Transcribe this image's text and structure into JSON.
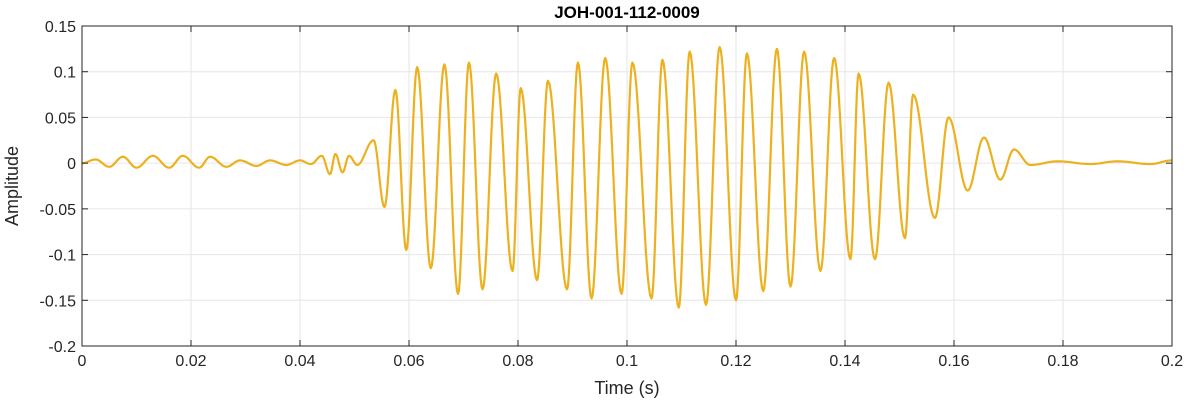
{
  "chart_data": {
    "type": "line",
    "title": "JOH-001-112-0009",
    "xlabel": "Time (s)",
    "ylabel": "Amplitude",
    "xlim": [
      0,
      0.2
    ],
    "ylim": [
      -0.2,
      0.15
    ],
    "x_ticks": [
      0,
      0.02,
      0.04,
      0.06,
      0.08,
      0.1,
      0.12,
      0.14,
      0.16,
      0.18,
      0.2
    ],
    "x_tick_labels": [
      "0",
      "0.02",
      "0.04",
      "0.06",
      "0.08",
      "0.1",
      "0.12",
      "0.14",
      "0.16",
      "0.18",
      "0.2"
    ],
    "y_ticks": [
      0.15,
      0.1,
      0.05,
      0,
      -0.05,
      -0.1,
      -0.15,
      -0.2
    ],
    "y_tick_labels": [
      "0.15",
      "0.1",
      "0.05",
      "0",
      "-0.05",
      "-0.1",
      "-0.15",
      "-0.2"
    ],
    "grid": true,
    "color": "#EDB120",
    "series": [
      {
        "name": "",
        "peaks": [
          {
            "t": 0.0025,
            "a": 0.004
          },
          {
            "t": 0.005,
            "a": -0.004
          },
          {
            "t": 0.0075,
            "a": 0.007
          },
          {
            "t": 0.01,
            "a": -0.005
          },
          {
            "t": 0.013,
            "a": 0.008
          },
          {
            "t": 0.016,
            "a": -0.005
          },
          {
            "t": 0.0185,
            "a": 0.008
          },
          {
            "t": 0.0215,
            "a": -0.005
          },
          {
            "t": 0.0235,
            "a": 0.007
          },
          {
            "t": 0.0265,
            "a": -0.004
          },
          {
            "t": 0.029,
            "a": 0.003
          },
          {
            "t": 0.032,
            "a": -0.003
          },
          {
            "t": 0.0345,
            "a": 0.003
          },
          {
            "t": 0.0375,
            "a": -0.002
          },
          {
            "t": 0.04,
            "a": 0.003
          },
          {
            "t": 0.042,
            "a": -0.001
          },
          {
            "t": 0.044,
            "a": 0.008
          },
          {
            "t": 0.0455,
            "a": -0.012
          },
          {
            "t": 0.0465,
            "a": 0.01
          },
          {
            "t": 0.0478,
            "a": -0.01
          },
          {
            "t": 0.049,
            "a": 0.008
          },
          {
            "t": 0.0505,
            "a": -0.002
          },
          {
            "t": 0.0535,
            "a": 0.025
          },
          {
            "t": 0.0555,
            "a": -0.048
          },
          {
            "t": 0.0575,
            "a": 0.08
          },
          {
            "t": 0.0595,
            "a": -0.095
          },
          {
            "t": 0.0615,
            "a": 0.105
          },
          {
            "t": 0.064,
            "a": -0.115
          },
          {
            "t": 0.0665,
            "a": 0.108
          },
          {
            "t": 0.069,
            "a": -0.143
          },
          {
            "t": 0.071,
            "a": 0.11
          },
          {
            "t": 0.0735,
            "a": -0.138
          },
          {
            "t": 0.076,
            "a": 0.098
          },
          {
            "t": 0.079,
            "a": -0.118
          },
          {
            "t": 0.0805,
            "a": 0.082
          },
          {
            "t": 0.0835,
            "a": -0.128
          },
          {
            "t": 0.0855,
            "a": 0.09
          },
          {
            "t": 0.089,
            "a": -0.138
          },
          {
            "t": 0.091,
            "a": 0.11
          },
          {
            "t": 0.0935,
            "a": -0.148
          },
          {
            "t": 0.096,
            "a": 0.115
          },
          {
            "t": 0.099,
            "a": -0.143
          },
          {
            "t": 0.101,
            "a": 0.11
          },
          {
            "t": 0.1045,
            "a": -0.148
          },
          {
            "t": 0.1065,
            "a": 0.113
          },
          {
            "t": 0.1095,
            "a": -0.158
          },
          {
            "t": 0.1115,
            "a": 0.122
          },
          {
            "t": 0.1145,
            "a": -0.155
          },
          {
            "t": 0.117,
            "a": 0.127
          },
          {
            "t": 0.12,
            "a": -0.15
          },
          {
            "t": 0.122,
            "a": 0.12
          },
          {
            "t": 0.125,
            "a": -0.14
          },
          {
            "t": 0.1275,
            "a": 0.125
          },
          {
            "t": 0.13,
            "a": -0.135
          },
          {
            "t": 0.1325,
            "a": 0.122
          },
          {
            "t": 0.1355,
            "a": -0.118
          },
          {
            "t": 0.138,
            "a": 0.115
          },
          {
            "t": 0.141,
            "a": -0.105
          },
          {
            "t": 0.1425,
            "a": 0.098
          },
          {
            "t": 0.1455,
            "a": -0.105
          },
          {
            "t": 0.148,
            "a": 0.088
          },
          {
            "t": 0.151,
            "a": -0.082
          },
          {
            "t": 0.1525,
            "a": 0.075
          },
          {
            "t": 0.1565,
            "a": -0.06
          },
          {
            "t": 0.159,
            "a": 0.05
          },
          {
            "t": 0.1625,
            "a": -0.03
          },
          {
            "t": 0.1655,
            "a": 0.028
          },
          {
            "t": 0.1685,
            "a": -0.018
          },
          {
            "t": 0.171,
            "a": 0.015
          },
          {
            "t": 0.174,
            "a": -0.002
          },
          {
            "t": 0.179,
            "a": 0.002
          },
          {
            "t": 0.185,
            "a": -0.001
          },
          {
            "t": 0.19,
            "a": 0.002
          },
          {
            "t": 0.196,
            "a": -0.001
          },
          {
            "t": 0.2,
            "a": 0.003
          }
        ]
      }
    ]
  }
}
